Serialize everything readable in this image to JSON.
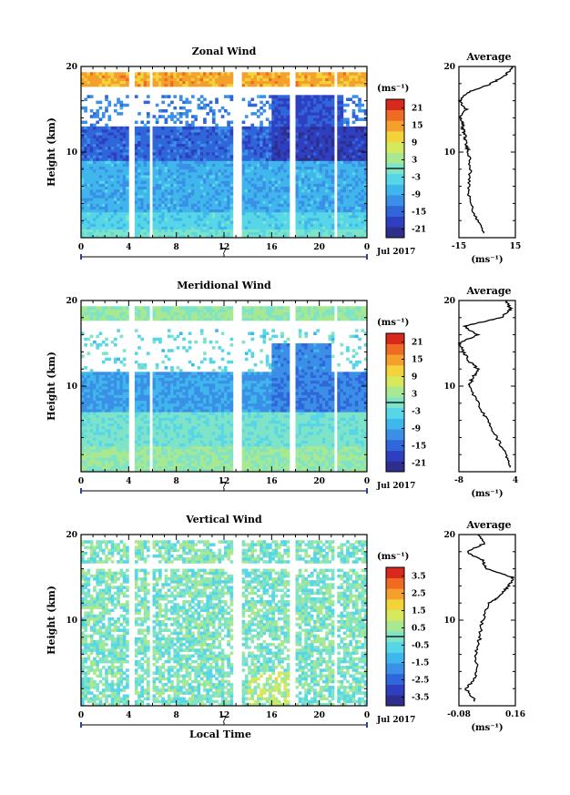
{
  "chart_data": [
    {
      "type": "heatmap",
      "title": "Zonal Wind",
      "ylabel": "Height (km)",
      "ylim": [
        0,
        20
      ],
      "y_ticks": [
        "10",
        "20"
      ],
      "x_ticks": [
        "0",
        "4",
        "8",
        "12",
        "16",
        "20",
        "0"
      ],
      "x_range_hours": [
        0,
        24
      ],
      "date_marker": "7",
      "date_label": "Jul 2017",
      "colorbar_unit": "(ms⁻¹)",
      "colorbar_ticks": [
        "21",
        "15",
        "9",
        "3",
        "-3",
        "-9",
        "-15",
        "-21"
      ],
      "colorbar_range": [
        -24,
        24
      ],
      "data_gaps_hours": [
        [
          4.0,
          4.5
        ],
        [
          5.7,
          6.0
        ],
        [
          12.8,
          13.4
        ],
        [
          17.6,
          17.9
        ],
        [
          21.2,
          21.6
        ]
      ],
      "average_profile": {
        "title": "Average",
        "xlim": [
          -15,
          15
        ],
        "x_ticks": [
          "-15",
          "15"
        ],
        "xlabel": "(ms⁻¹)",
        "y_ticks": [
          "10",
          "20"
        ],
        "height_km": [
          0.5,
          2,
          4,
          6,
          8,
          10,
          11,
          12,
          13,
          14,
          15,
          16,
          17,
          18,
          19,
          20
        ],
        "values": [
          -2,
          -5,
          -9,
          -10,
          -9,
          -10,
          -11,
          -12,
          -13,
          -14,
          -11,
          -15,
          -10,
          2,
          10,
          14
        ]
      }
    },
    {
      "type": "heatmap",
      "title": "Meridional Wind",
      "ylabel": "Height (km)",
      "ylim": [
        0,
        20
      ],
      "y_ticks": [
        "10",
        "20"
      ],
      "x_ticks": [
        "0",
        "4",
        "8",
        "12",
        "16",
        "20",
        "0"
      ],
      "x_range_hours": [
        0,
        24
      ],
      "date_marker": "7",
      "date_label": "Jul 2017",
      "colorbar_unit": "(ms⁻¹)",
      "colorbar_ticks": [
        "21",
        "15",
        "9",
        "3",
        "-3",
        "-9",
        "-15",
        "-21"
      ],
      "colorbar_range": [
        -24,
        24
      ],
      "data_gaps_hours": [
        [
          4.0,
          4.5
        ],
        [
          5.7,
          6.0
        ],
        [
          12.8,
          13.4
        ],
        [
          17.6,
          17.9
        ],
        [
          21.2,
          21.6
        ]
      ],
      "average_profile": {
        "title": "Average",
        "xlim": [
          -8,
          4
        ],
        "x_ticks": [
          "-8",
          "4"
        ],
        "xlabel": "(ms⁻¹)",
        "y_ticks": [
          "10",
          "20"
        ],
        "height_km": [
          0.5,
          2,
          4,
          6,
          8,
          10,
          11,
          12,
          13,
          14,
          15,
          16,
          17,
          18,
          19,
          20
        ],
        "values": [
          3,
          2,
          0,
          -2,
          -4,
          -6,
          -5,
          -4,
          -6,
          -7,
          -8,
          -4,
          -7,
          1,
          3,
          2
        ]
      }
    },
    {
      "type": "heatmap",
      "title": "Vertical Wind",
      "ylabel": "Height (km)",
      "ylim": [
        0,
        20
      ],
      "y_ticks": [
        "10",
        "20"
      ],
      "x_ticks": [
        "0",
        "4",
        "8",
        "12",
        "16",
        "20",
        "0"
      ],
      "x_range_hours": [
        0,
        24
      ],
      "date_marker": "7",
      "date_label": "Jul 2017",
      "xlabel": "Local Time",
      "colorbar_unit": "(ms⁻¹)",
      "colorbar_ticks": [
        "3.5",
        "2.5",
        "1.5",
        "0.5",
        "-0.5",
        "-1.5",
        "-2.5",
        "-3.5"
      ],
      "colorbar_range": [
        -4,
        4
      ],
      "data_gaps_hours": [
        [
          4.0,
          4.5
        ],
        [
          5.7,
          6.0
        ],
        [
          12.8,
          13.4
        ],
        [
          17.6,
          17.9
        ],
        [
          21.2,
          21.6
        ]
      ],
      "average_profile": {
        "title": "Average",
        "xlim": [
          -0.08,
          0.16
        ],
        "x_ticks": [
          "-0.08",
          "0.16"
        ],
        "xlabel": "(ms⁻¹)",
        "y_ticks": [
          "10",
          "20"
        ],
        "height_km": [
          0.5,
          2,
          3,
          4,
          6,
          8,
          10,
          12,
          13,
          14,
          15,
          16,
          17,
          18,
          19,
          20
        ],
        "values": [
          -0.01,
          -0.05,
          -0.02,
          0.0,
          -0.01,
          0.01,
          0.02,
          0.05,
          0.1,
          0.13,
          0.15,
          0.04,
          0.02,
          -0.05,
          0.03,
          0.0
        ]
      }
    }
  ],
  "colors": {
    "scale": [
      "#2e2e8c",
      "#2f3fc0",
      "#2f66d9",
      "#3b8fe6",
      "#3fb6ec",
      "#56d6e6",
      "#7fe3c8",
      "#a8e890",
      "#d6e85c",
      "#f2d43a",
      "#f5a02c",
      "#ef6b22",
      "#d9281c"
    ]
  }
}
